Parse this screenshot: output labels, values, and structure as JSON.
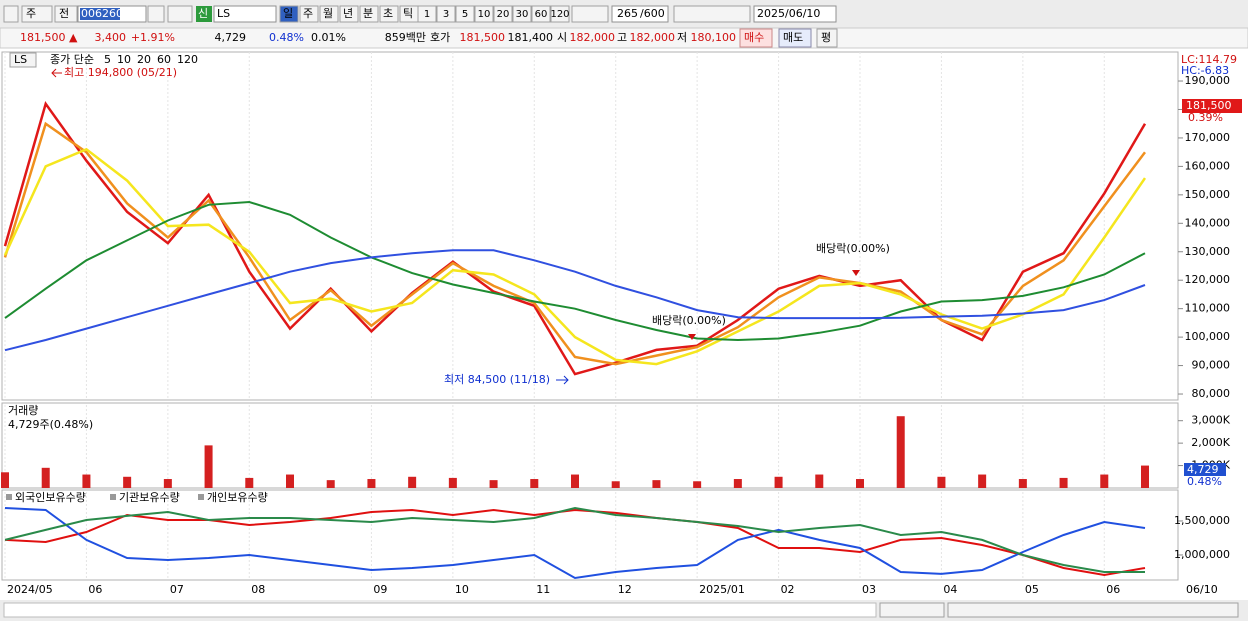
{
  "toolbar": {
    "market": "주",
    "mode": "전",
    "code": "006260",
    "new_badge": "신",
    "name": "LS",
    "periods": [
      "일",
      "주",
      "월",
      "년",
      "분",
      "초",
      "틱"
    ],
    "intervals": [
      "1",
      "3",
      "5",
      "10",
      "20",
      "30",
      "60",
      "120"
    ],
    "count": "265",
    "max_count": "/600",
    "date": "2025/06/10"
  },
  "quote_bar": {
    "price": "181,500 ▲",
    "change": "3,400",
    "change_rate": "+1.91%",
    "volume": "4,729",
    "volume_rate": "0.48%",
    "turnover_rate": "0.01%",
    "amount": "859백만",
    "quote_label": "호가",
    "ask": "181,500",
    "bid": "181,400",
    "open_label": "시",
    "open": "182,000",
    "high_label": "고",
    "high": "182,000",
    "low_label": "저",
    "low": "180,100",
    "buy": "매수",
    "sell": "매도",
    "avg": "평"
  },
  "chart_data": [
    {
      "type": "line",
      "symbol": "LS",
      "legend_title": "종가 단순",
      "ylim": [
        77900,
        200200
      ],
      "yticks": [
        {
          "value": 190000,
          "label": "190,000"
        },
        {
          "value": 180000,
          "label": "180,000"
        },
        {
          "value": 170000,
          "label": "170,000"
        },
        {
          "value": 160000,
          "label": "160,000"
        },
        {
          "value": 150000,
          "label": "150,000"
        },
        {
          "value": 140000,
          "label": "140,000"
        },
        {
          "value": 130000,
          "label": "130,000"
        },
        {
          "value": 120000,
          "label": "120,000"
        },
        {
          "value": 110000,
          "label": "110,000"
        },
        {
          "value": 100000,
          "label": "100,000"
        },
        {
          "value": 90000,
          "label": "90,000"
        },
        {
          "value": 80000,
          "label": "80,000"
        }
      ],
      "series": [
        {
          "name": "5",
          "color": "#e01818",
          "values": [
            132000,
            182000,
            162000,
            144000,
            133000,
            150000,
            123000,
            103000,
            117000,
            102000,
            115500,
            126500,
            116000,
            111000,
            87000,
            91000,
            95500,
            97000,
            106000,
            117000,
            121500,
            118000,
            120000,
            106000,
            99000,
            123000,
            129500,
            150500,
            175000
          ]
        },
        {
          "name": "10",
          "color": "#f0901e",
          "values": [
            128000,
            175000,
            165000,
            147000,
            135000,
            148000,
            128000,
            106000,
            116500,
            104000,
            115000,
            126000,
            118000,
            112000,
            93000,
            90500,
            93500,
            96500,
            103500,
            114000,
            121000,
            119000,
            116000,
            106000,
            101000,
            118000,
            127000,
            146000,
            165000
          ]
        },
        {
          "name": "20",
          "color": "#f5e61e",
          "values": [
            128800,
            160000,
            166000,
            155000,
            139000,
            139500,
            130000,
            112000,
            113500,
            109000,
            112000,
            123500,
            122000,
            115000,
            100000,
            92000,
            90500,
            95000,
            102000,
            109000,
            118000,
            119000,
            115000,
            108000,
            103000,
            108000,
            115000,
            135000,
            155900
          ]
        },
        {
          "name": "60",
          "color": "#1e8c32",
          "values": [
            106700,
            117000,
            127000,
            134000,
            141000,
            146500,
            147500,
            143000,
            135000,
            128000,
            122500,
            118500,
            115500,
            112500,
            110000,
            106000,
            102500,
            99500,
            99000,
            99500,
            101500,
            104000,
            109000,
            112500,
            113000,
            114500,
            117500,
            122000,
            129500
          ]
        },
        {
          "name": "120",
          "color": "#3050e0",
          "values": [
            95400,
            99000,
            103000,
            107000,
            111000,
            115000,
            119000,
            123000,
            126000,
            128000,
            129500,
            130500,
            130500,
            127000,
            123000,
            118000,
            114000,
            109500,
            107000,
            106700,
            106700,
            106700,
            106800,
            107200,
            107500,
            108300,
            109500,
            113000,
            118300
          ]
        }
      ],
      "annotations": {
        "high": "최고 194,800 (05/21)",
        "low": "최저 84,500 (11/18)",
        "dividend": [
          "배당락(0.00%)",
          "배당락(0.00%)"
        ]
      },
      "lc": "LC:114.79",
      "hc": "HC:-6.83",
      "last_price": "181,500",
      "last_rate": "0.39%"
    },
    {
      "type": "bar",
      "title": "거래량",
      "subtitle": "4,729주(0.48%)",
      "ylim": [
        0,
        3700000
      ],
      "color": "#d42020",
      "yticks": [
        {
          "value": 1000000,
          "label": "1,000K"
        },
        {
          "value": 2000000,
          "label": "2,000K"
        },
        {
          "value": 3000000,
          "label": "3,000K"
        }
      ],
      "values": [
        700000,
        900000,
        600000,
        500000,
        400000,
        1900000,
        450000,
        600000,
        350000,
        400000,
        500000,
        450000,
        350000,
        400000,
        600000,
        300000,
        350000,
        300000,
        400000,
        500000,
        600000,
        400000,
        3200000,
        500000,
        600000,
        400000,
        450000,
        600000,
        1000000
      ],
      "last_value": "4,729",
      "last_rate": "0.48%"
    },
    {
      "type": "line",
      "ylim": [
        632000,
        1926000
      ],
      "categories": [
        "2024/05",
        null,
        "06",
        null,
        "07",
        null,
        "08",
        null,
        null,
        "09",
        null,
        "10",
        null,
        "11",
        null,
        "12",
        null,
        "2025/01",
        null,
        "02",
        null,
        "03",
        null,
        "04",
        null,
        "05",
        null,
        "06",
        null
      ],
      "yticks": [
        {
          "value": 1500000,
          "label": "1,500,000"
        },
        {
          "value": 1000000,
          "label": "1,000,000"
        }
      ],
      "series": [
        {
          "name": "외국인보유수량",
          "color": "#e01010",
          "values": [
            1221000,
            1191000,
            1338000,
            1588000,
            1515000,
            1515000,
            1441000,
            1485000,
            1544000,
            1632000,
            1662000,
            1588000,
            1662000,
            1588000,
            1662000,
            1618000,
            1544000,
            1485000,
            1397000,
            1103000,
            1103000,
            1044000,
            1221000,
            1250000,
            1147000,
            1000000,
            809000,
            706000,
            809000
          ]
        },
        {
          "name": "기관보유수량",
          "color": "#2050e0",
          "values": [
            1691000,
            1662000,
            1221000,
            956000,
            926000,
            956000,
            1000000,
            926000,
            853000,
            779000,
            809000,
            853000,
            926000,
            1000000,
            662000,
            750000,
            809000,
            853000,
            1221000,
            1368000,
            1221000,
            1103000,
            750000,
            721000,
            779000,
            1044000,
            1294000,
            1485000,
            1397000
          ]
        },
        {
          "name": "개인보유수량",
          "color": "#2a8a4a",
          "values": [
            1221000,
            1368000,
            1515000,
            1574000,
            1632000,
            1515000,
            1544000,
            1544000,
            1515000,
            1485000,
            1544000,
            1515000,
            1485000,
            1544000,
            1691000,
            1588000,
            1544000,
            1485000,
            1426000,
            1338000,
            1397000,
            1441000,
            1294000,
            1338000,
            1221000,
            1000000,
            853000,
            750000,
            750000
          ]
        }
      ]
    }
  ],
  "last_date": "06/10"
}
